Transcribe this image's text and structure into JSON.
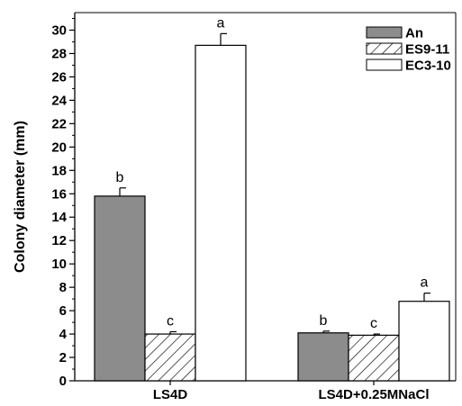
{
  "chart_data": {
    "type": "bar",
    "ylabel": "Colony diameter (mm)",
    "xlabel": "",
    "ylim": [
      0,
      31.5
    ],
    "yticks": [
      0,
      2,
      4,
      6,
      8,
      10,
      12,
      14,
      16,
      18,
      20,
      22,
      24,
      26,
      28,
      30
    ],
    "categories": [
      "LS4D",
      "LS4D+0.25MNaCl"
    ],
    "legend_position": "top-right",
    "grid": false,
    "series": [
      {
        "name": "An",
        "fill": "solid-gray",
        "color": "#8c8c8c",
        "values": [
          15.8,
          4.1
        ],
        "errors": [
          0.7,
          0.15
        ],
        "letters": [
          "b",
          "b"
        ]
      },
      {
        "name": "ES9-11",
        "fill": "hatched",
        "color": "#ffffff",
        "values": [
          4.0,
          3.9
        ],
        "errors": [
          0.2,
          0.1
        ],
        "letters": [
          "c",
          "c"
        ]
      },
      {
        "name": "EC3-10",
        "fill": "white",
        "color": "#ffffff",
        "values": [
          28.7,
          6.8
        ],
        "errors": [
          1.0,
          0.7
        ],
        "letters": [
          "a",
          "a"
        ]
      }
    ]
  }
}
